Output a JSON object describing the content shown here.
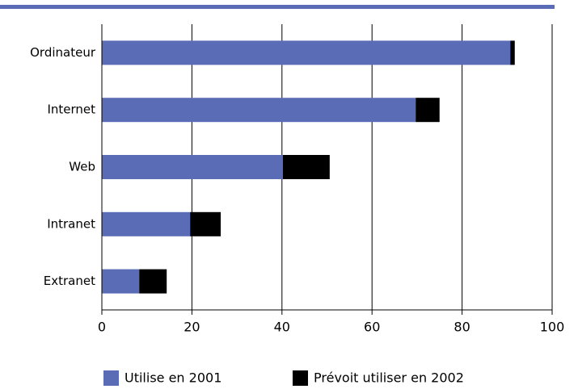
{
  "chart_data": {
    "type": "stacked-barh",
    "categories": [
      "Ordinateur",
      "Internet",
      "Web",
      "Intranet",
      "Extranet"
    ],
    "series": [
      {
        "name": "Utilise en 2001",
        "color": "#5b6cb7",
        "values": [
          90.7,
          69.7,
          40.2,
          19.6,
          8.3
        ]
      },
      {
        "name": "Prévoit utiliser en 2002",
        "color": "#000000",
        "values": [
          1.0,
          5.3,
          10.4,
          6.8,
          6.1
        ]
      }
    ],
    "xlim": [
      0,
      100
    ],
    "xticks": [
      0,
      20,
      40,
      60,
      80,
      100
    ],
    "grid": true
  }
}
